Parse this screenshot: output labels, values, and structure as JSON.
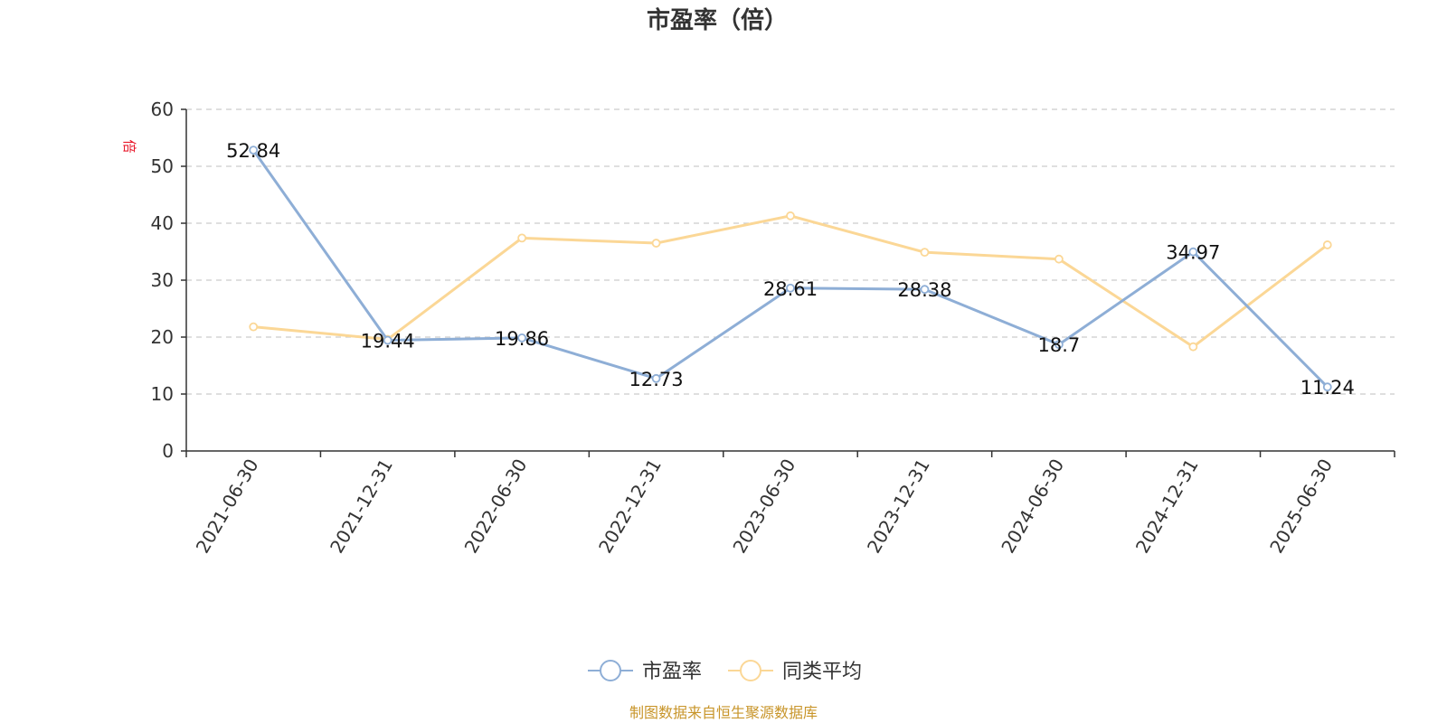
{
  "chart_data": {
    "type": "line",
    "title": "市盈率（倍）",
    "unit_label": "倍",
    "categories": [
      "2021-06-30",
      "2021-12-31",
      "2022-06-30",
      "2022-12-31",
      "2023-06-30",
      "2023-12-31",
      "2024-06-30",
      "2024-12-31",
      "2025-06-30"
    ],
    "ylim": [
      0,
      60
    ],
    "yticks": [
      0,
      10,
      20,
      30,
      40,
      50,
      60
    ],
    "grid": true,
    "legend_position": "bottom-center",
    "series": [
      {
        "name": "市盈率",
        "color": "#8eaed6",
        "show_labels": true,
        "values": [
          52.84,
          19.44,
          19.86,
          12.73,
          28.61,
          28.38,
          18.7,
          34.97,
          11.24
        ],
        "labels": [
          "52.84",
          "19.44",
          "19.86",
          "12.73",
          "28.61",
          "28.38",
          "18.7",
          "34.97",
          "11.24"
        ]
      },
      {
        "name": "同类平均",
        "color": "#fbd796",
        "show_labels": false,
        "values": [
          21.8,
          19.6,
          37.4,
          36.5,
          41.3,
          34.9,
          33.7,
          18.3,
          36.2
        ]
      }
    ],
    "source": "制图数据来自恒生聚源数据库"
  }
}
